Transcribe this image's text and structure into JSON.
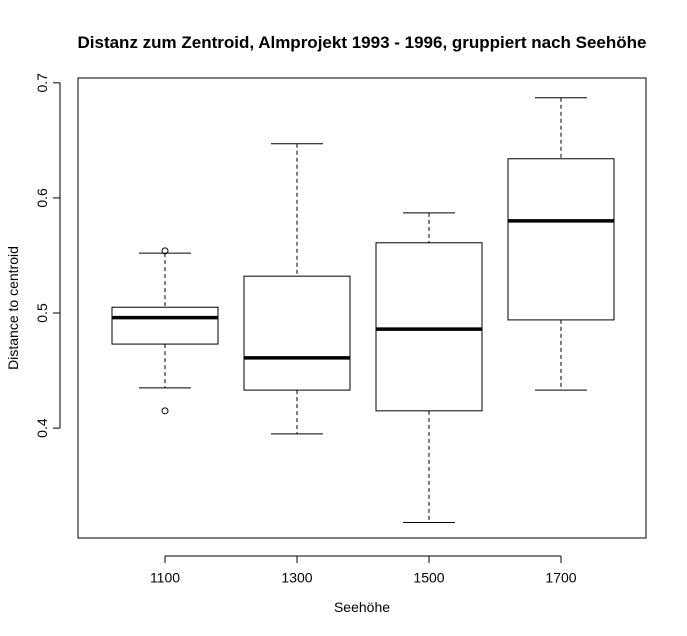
{
  "chart_data": {
    "type": "boxplot",
    "title": "Distanz zum Zentroid, Almprojekt 1993 - 1996, gruppiert nach Seehöhe",
    "xlabel": "Seehöhe",
    "ylabel": "Distance to centroid",
    "categories": [
      "1100",
      "1300",
      "1500",
      "1700"
    ],
    "ylim": [
      0.3,
      0.7
    ],
    "yticks": [
      0.4,
      0.5,
      0.6,
      0.7
    ],
    "boxes": [
      {
        "category": "1100",
        "whisker_low": 0.435,
        "q1": 0.473,
        "median": 0.496,
        "q3": 0.505,
        "whisker_high": 0.552,
        "outliers": [
          0.415,
          0.554
        ]
      },
      {
        "category": "1300",
        "whisker_low": 0.395,
        "q1": 0.433,
        "median": 0.461,
        "q3": 0.532,
        "whisker_high": 0.647,
        "outliers": []
      },
      {
        "category": "1500",
        "whisker_low": 0.318,
        "q1": 0.415,
        "median": 0.486,
        "q3": 0.561,
        "whisker_high": 0.587,
        "outliers": []
      },
      {
        "category": "1700",
        "whisker_low": 0.433,
        "q1": 0.494,
        "median": 0.58,
        "q3": 0.634,
        "whisker_high": 0.687,
        "outliers": []
      }
    ],
    "grid": false,
    "legend": "none"
  }
}
